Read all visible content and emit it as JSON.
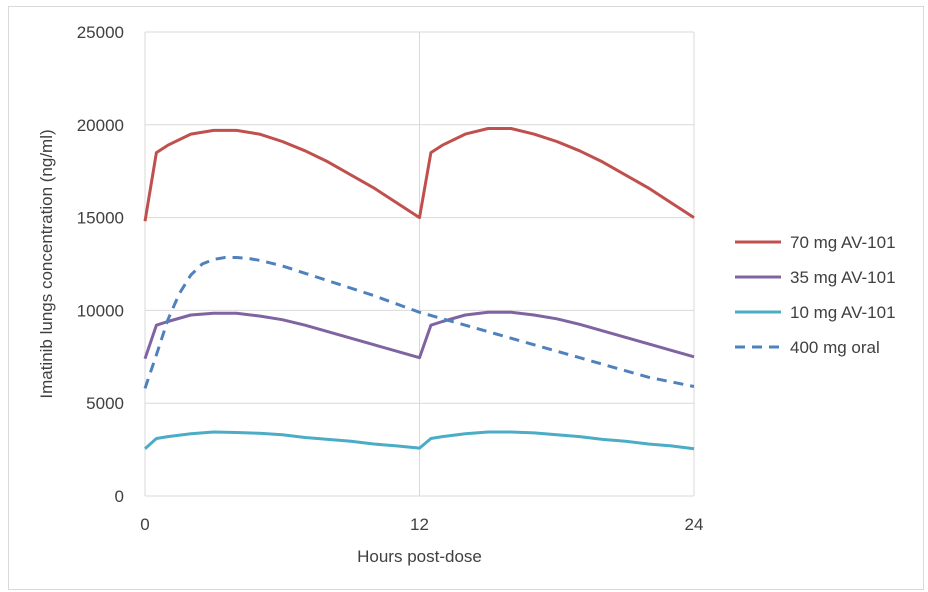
{
  "chart_data": {
    "type": "line",
    "title": "",
    "xlabel": "Hours post-dose",
    "ylabel": "Imatinib lungs concentration (ng/ml)",
    "xlim": [
      0,
      24
    ],
    "ylim": [
      0,
      25000
    ],
    "x_ticks": [
      0,
      12,
      24
    ],
    "y_ticks": [
      0,
      5000,
      10000,
      15000,
      20000,
      25000
    ],
    "grid": true,
    "legend_position": "right",
    "series": [
      {
        "name": "70 mg AV-101",
        "color": "#c0504d",
        "dash": "solid",
        "x": [
          0,
          0.5,
          1,
          2,
          3,
          4,
          5,
          6,
          7,
          8,
          9,
          10,
          11,
          12,
          12.5,
          13,
          14,
          15,
          16,
          17,
          18,
          19,
          20,
          21,
          22,
          23,
          24
        ],
        "y": [
          14800,
          18500,
          18900,
          19500,
          19700,
          19700,
          19500,
          19100,
          18600,
          18000,
          17300,
          16600,
          15800,
          15000,
          18500,
          18900,
          19500,
          19800,
          19800,
          19500,
          19100,
          18600,
          18000,
          17300,
          16600,
          15800,
          15000
        ]
      },
      {
        "name": "35 mg AV-101",
        "color": "#8064a2",
        "dash": "solid",
        "x": [
          0,
          0.5,
          1,
          2,
          3,
          4,
          5,
          6,
          7,
          8,
          9,
          10,
          11,
          12,
          12.5,
          13,
          14,
          15,
          16,
          17,
          18,
          19,
          20,
          21,
          22,
          23,
          24
        ],
        "y": [
          7400,
          9200,
          9400,
          9750,
          9850,
          9850,
          9700,
          9500,
          9200,
          8850,
          8500,
          8150,
          7800,
          7450,
          9200,
          9400,
          9750,
          9900,
          9900,
          9750,
          9550,
          9250,
          8900,
          8550,
          8200,
          7850,
          7500
        ]
      },
      {
        "name": "10 mg AV-101",
        "color": "#4bacc6",
        "dash": "solid",
        "x": [
          0,
          0.5,
          1,
          2,
          3,
          4,
          5,
          6,
          7,
          8,
          9,
          10,
          11,
          12,
          12.5,
          13,
          14,
          15,
          16,
          17,
          18,
          19,
          20,
          21,
          22,
          23,
          24
        ],
        "y": [
          2550,
          3100,
          3200,
          3350,
          3450,
          3420,
          3380,
          3300,
          3150,
          3050,
          2950,
          2800,
          2700,
          2580,
          3100,
          3200,
          3350,
          3450,
          3450,
          3400,
          3300,
          3200,
          3050,
          2950,
          2800,
          2700,
          2550
        ]
      },
      {
        "name": "400 mg oral",
        "color": "#4f81bd",
        "dash": "dashed",
        "x": [
          0,
          0.5,
          1,
          1.5,
          2,
          2.5,
          3,
          3.5,
          4,
          4.5,
          5,
          6,
          7,
          8,
          10,
          12,
          14,
          16,
          18,
          20,
          22,
          24
        ],
        "y": [
          5800,
          7600,
          9500,
          10900,
          11900,
          12500,
          12750,
          12850,
          12850,
          12800,
          12700,
          12400,
          12000,
          11600,
          10800,
          9900,
          9200,
          8500,
          7800,
          7100,
          6400,
          5900
        ]
      }
    ]
  }
}
